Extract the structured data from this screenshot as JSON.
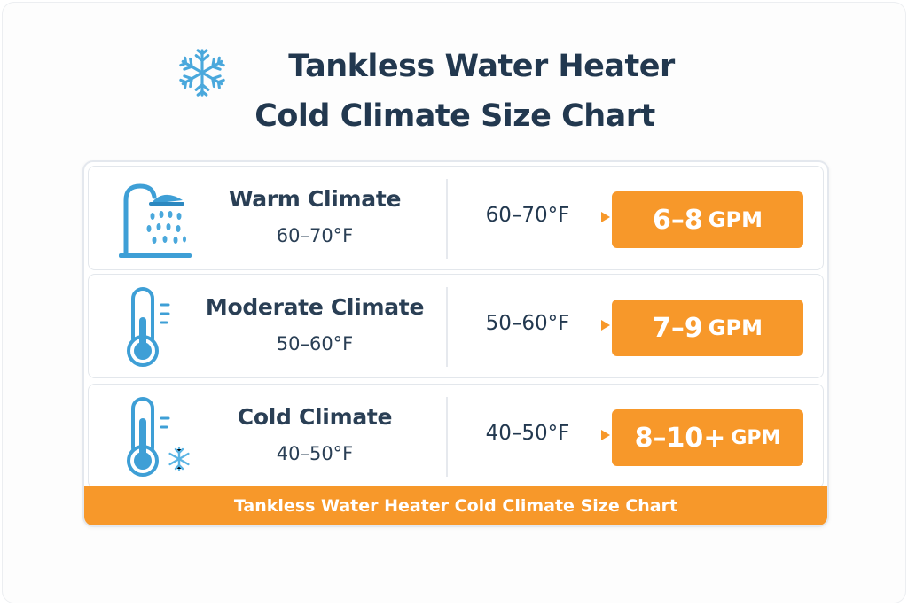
{
  "title": {
    "line1": "Tankless Water Heater",
    "line2": "Cold Climate Size Chart",
    "icon": "snowflake-icon"
  },
  "rows": [
    {
      "name": "Warm Climate",
      "range": "60–70°F",
      "temp": "60–70°F",
      "gpm_value": "6–8",
      "gpm_unit": "GPM",
      "icon": "shower-icon"
    },
    {
      "name": "Moderate Climate",
      "range": "50–60°F",
      "temp": "50–60°F",
      "gpm_value": "7–9",
      "gpm_unit": "GPM",
      "icon": "thermometer-icon"
    },
    {
      "name": "Cold Climate",
      "range": "40–50°F",
      "temp": "40–50°F",
      "gpm_value": "8–10+",
      "gpm_unit": "GPM",
      "icon": "thermometer-snowflake-icon"
    }
  ],
  "footer": {
    "label": "Tankless Water Heater Cold Climate Size Chart"
  },
  "colors": {
    "accent_orange": "#f7982a",
    "title_navy": "#22384f",
    "icon_blue": "#3e9fd6",
    "icon_light_blue": "#7fc6ec"
  }
}
